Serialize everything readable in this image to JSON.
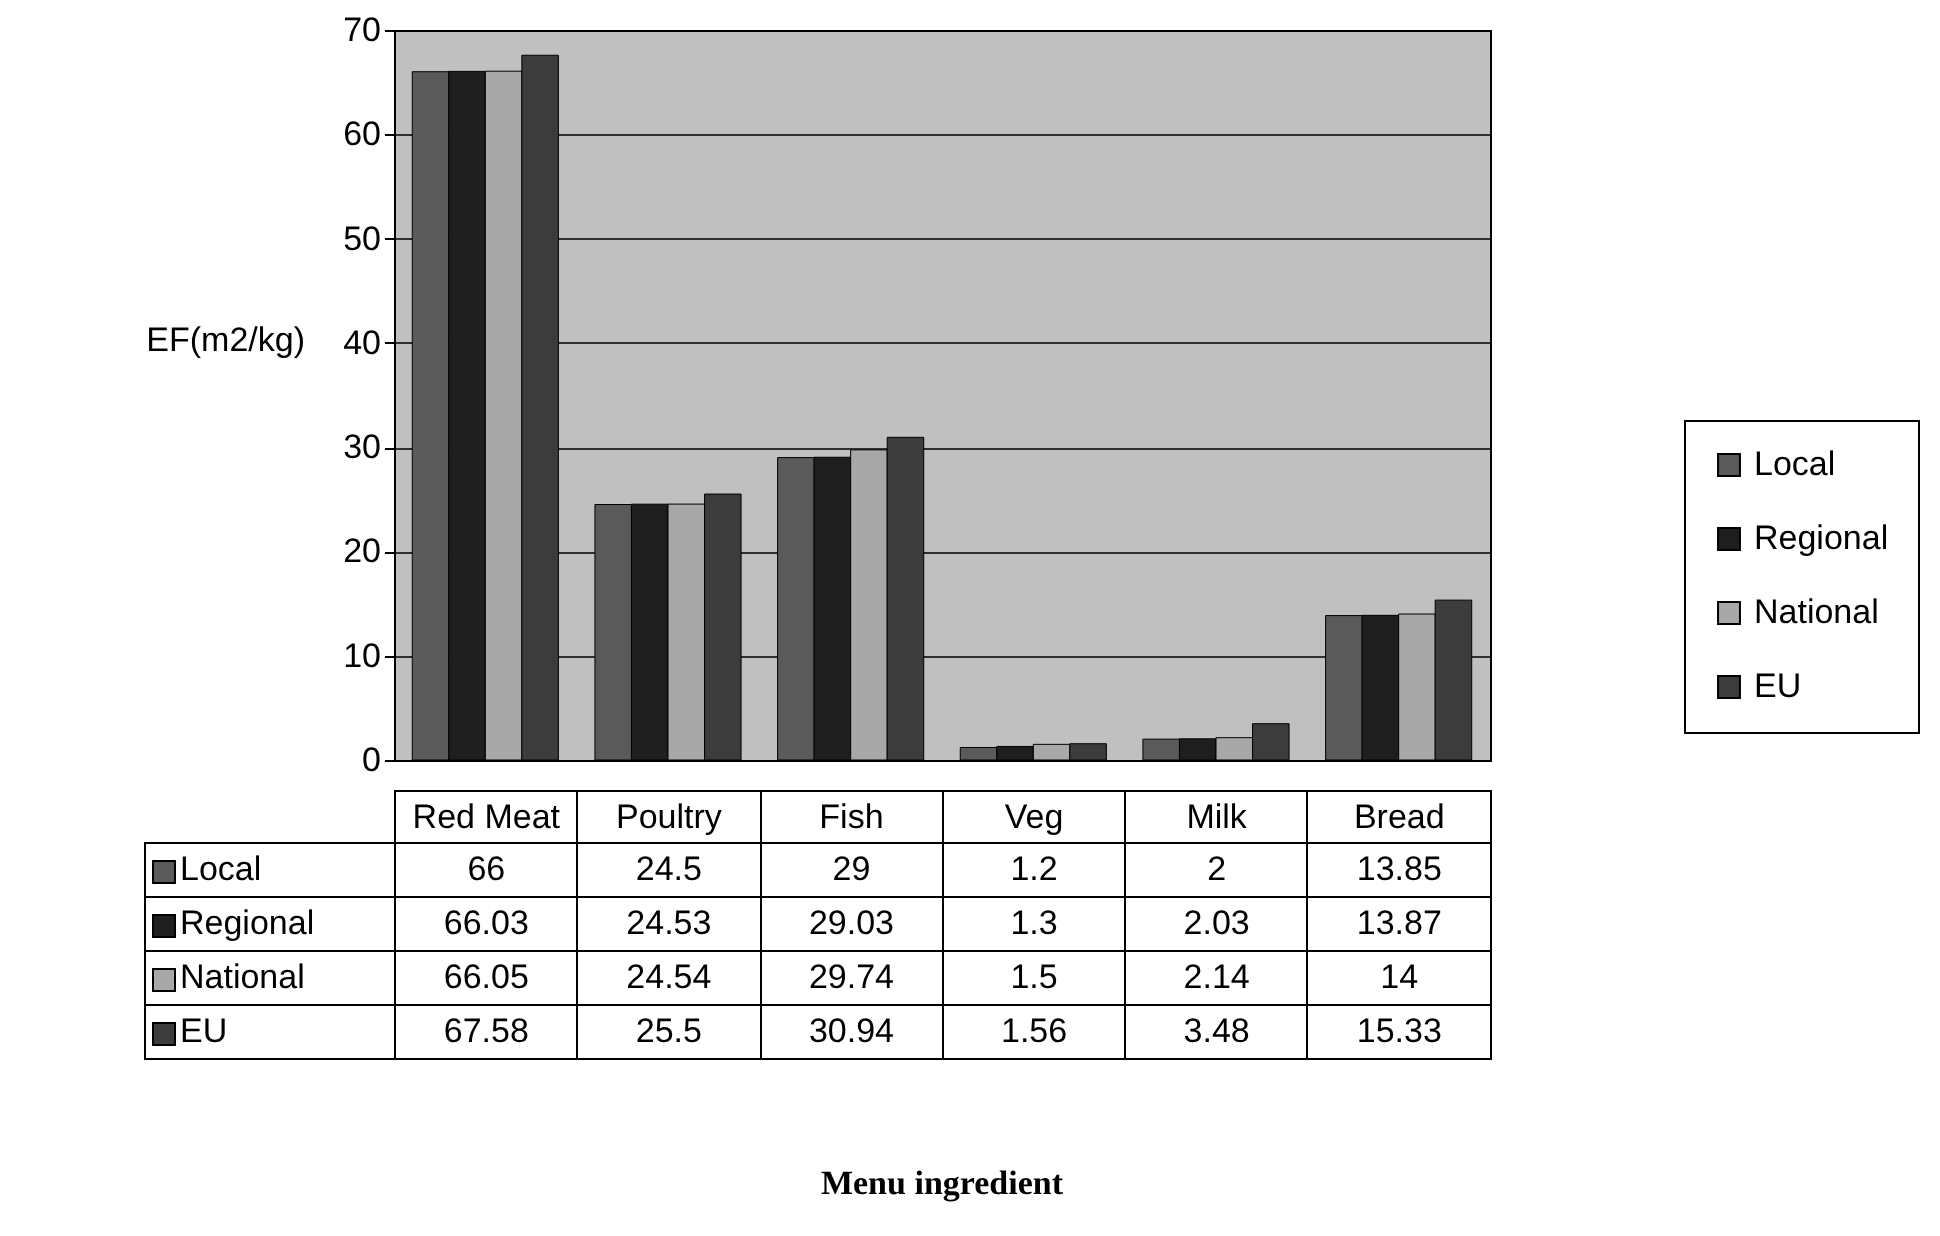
{
  "chart_data": {
    "type": "bar",
    "annotations": [
      "Menu ingredient"
    ],
    "ylabel": "EF(m2/kg)",
    "categories": [
      "Red Meat",
      "Poultry",
      "Fish",
      "Veg",
      "Milk",
      "Bread"
    ],
    "series": [
      {
        "name": "Local",
        "color": "#5a5a5a",
        "values": [
          66,
          24.5,
          29,
          1.2,
          2,
          13.85
        ]
      },
      {
        "name": "Regional",
        "color": "#1e1e1e",
        "values": [
          66.03,
          24.53,
          29.03,
          1.3,
          2.03,
          13.87
        ]
      },
      {
        "name": "National",
        "color": "#a8a8a8",
        "values": [
          66.05,
          24.54,
          29.74,
          1.5,
          2.14,
          14
        ]
      },
      {
        "name": "EU",
        "color": "#3c3c3c",
        "values": [
          67.58,
          25.5,
          30.94,
          1.56,
          3.48,
          15.33
        ]
      }
    ],
    "ylim": [
      0,
      70
    ],
    "yticks": [
      0,
      10,
      20,
      30,
      40,
      50,
      60,
      70
    ],
    "grid": "y",
    "legend": "right",
    "data_labels": true
  }
}
